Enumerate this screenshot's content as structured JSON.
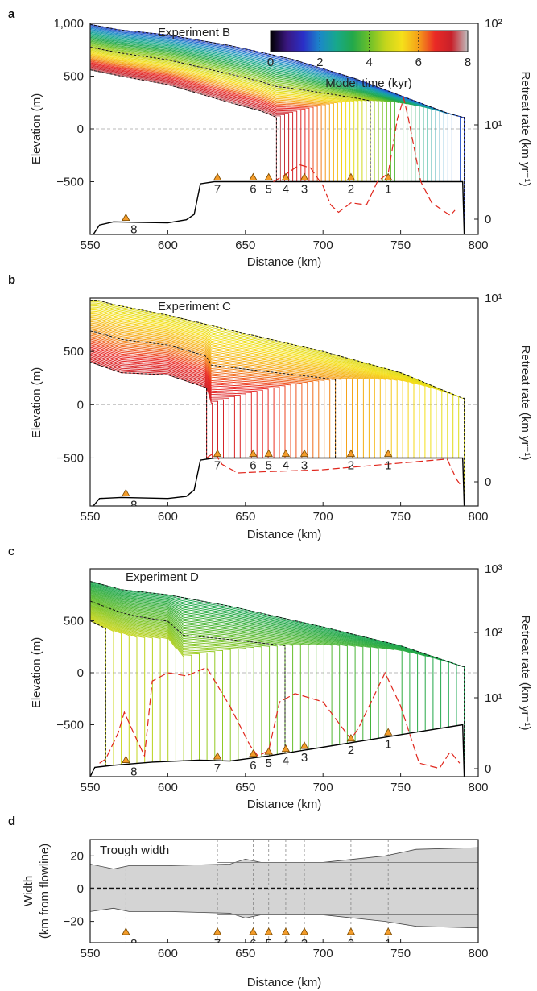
{
  "figure": {
    "panel_labels": [
      "a",
      "b",
      "c",
      "d"
    ],
    "colorbar": {
      "title": "Model time (kyr)",
      "ticks": [
        "0",
        "2",
        "4",
        "6",
        "8"
      ],
      "range": [
        0,
        8
      ]
    },
    "colors": {
      "bed": "#000000",
      "rate": "#e0261c",
      "marker_fill": "#f39c2a",
      "marker_edge": "#7a4a00",
      "sealevel": "#b8b8b8",
      "trough": "#d4d4d4",
      "colormap": [
        "#000000",
        "#3a1780",
        "#2a2fc8",
        "#1b88c9",
        "#17a88c",
        "#22a84a",
        "#6cc02a",
        "#c4d51c",
        "#f5e01a",
        "#f5a019",
        "#ea2a25",
        "#c8202a",
        "#c0c0c0"
      ]
    },
    "markers": [
      "1",
      "2",
      "3",
      "4",
      "5",
      "6",
      "7",
      "8"
    ]
  },
  "chart_data": [
    {
      "panel": "a",
      "type": "line",
      "title": "Experiment B",
      "xlabel": "Distance (km)",
      "ylabel": "Elevation (m)",
      "ylabel_right": "Retreat rate (km yr⁻¹)",
      "xlim": [
        550,
        800
      ],
      "ylim": [
        -1000,
        1000
      ],
      "xticks": [
        "550",
        "600",
        "650",
        "700",
        "750",
        "800"
      ],
      "yticks": [
        "1,000",
        "500",
        "0",
        "−500"
      ],
      "right_axis": {
        "scale": "log",
        "ticks": [
          "10²",
          "10¹",
          "0"
        ]
      },
      "ice_surface_start": [
        [
          550,
          990
        ],
        [
          568,
          940
        ],
        [
          600,
          890
        ],
        [
          640,
          790
        ],
        [
          680,
          660
        ],
        [
          720,
          480
        ],
        [
          760,
          260
        ],
        [
          780,
          150
        ],
        [
          790,
          110
        ]
      ],
      "ice_surface_end": [
        [
          550,
          560
        ],
        [
          570,
          500
        ],
        [
          600,
          420
        ],
        [
          640,
          250
        ],
        [
          660,
          170
        ],
        [
          670,
          110
        ]
      ],
      "grounding_line_km": {
        "start": 791,
        "end": 670
      },
      "bed": [
        [
          552,
          -1000
        ],
        [
          556,
          -910
        ],
        [
          565,
          -880
        ],
        [
          580,
          -885
        ],
        [
          600,
          -890
        ],
        [
          612,
          -860
        ],
        [
          617,
          -810
        ],
        [
          621,
          -520
        ],
        [
          630,
          -500
        ],
        [
          790,
          -500
        ],
        [
          791,
          -1000
        ]
      ],
      "retreat_rate": [
        [
          668,
          -500
        ],
        [
          675,
          -440
        ],
        [
          685,
          -340
        ],
        [
          692,
          -370
        ],
        [
          700,
          -540
        ],
        [
          705,
          -720
        ],
        [
          710,
          -790
        ],
        [
          718,
          -700
        ],
        [
          728,
          -720
        ],
        [
          735,
          -500
        ],
        [
          742,
          -420
        ],
        [
          748,
          100
        ],
        [
          752,
          290
        ],
        [
          755,
          100
        ],
        [
          763,
          -500
        ],
        [
          770,
          -700
        ],
        [
          778,
          -780
        ],
        [
          782,
          -820
        ],
        [
          785,
          -770
        ]
      ],
      "markers_x": [
        742,
        718,
        688,
        676,
        665,
        655,
        632,
        573
      ]
    },
    {
      "panel": "b",
      "type": "line",
      "title": "Experiment C",
      "xlabel": "Distance (km)",
      "ylabel": "Elevation (m)",
      "ylabel_right": "Retreat rate (km yr⁻¹)",
      "xlim": [
        550,
        800
      ],
      "ylim": [
        -950,
        1000
      ],
      "xticks": [
        "550",
        "600",
        "650",
        "700",
        "750",
        "800"
      ],
      "yticks": [
        "500",
        "0",
        "−500"
      ],
      "right_axis": {
        "scale": "log",
        "ticks": [
          "10¹",
          "0"
        ]
      },
      "ice_surface_start": [
        [
          555,
          980
        ],
        [
          565,
          940
        ],
        [
          600,
          840
        ],
        [
          640,
          700
        ],
        [
          700,
          500
        ],
        [
          750,
          300
        ],
        [
          790,
          60
        ]
      ],
      "ice_surface_end": [
        [
          550,
          400
        ],
        [
          570,
          300
        ],
        [
          600,
          280
        ],
        [
          625,
          160
        ],
        [
          628,
          0
        ]
      ],
      "grounding_line_km": {
        "start": 791,
        "end": 625
      },
      "bed": [
        [
          552,
          -950
        ],
        [
          556,
          -880
        ],
        [
          570,
          -870
        ],
        [
          600,
          -880
        ],
        [
          612,
          -860
        ],
        [
          617,
          -800
        ],
        [
          621,
          -520
        ],
        [
          630,
          -500
        ],
        [
          790,
          -500
        ],
        [
          791,
          -950
        ]
      ],
      "retreat_rate": [
        [
          625,
          -500
        ],
        [
          630,
          -450
        ],
        [
          635,
          -560
        ],
        [
          645,
          -640
        ],
        [
          660,
          -630
        ],
        [
          700,
          -610
        ],
        [
          740,
          -560
        ],
        [
          780,
          -510
        ],
        [
          786,
          -700
        ],
        [
          789,
          -760
        ]
      ],
      "markers_x": [
        742,
        718,
        688,
        676,
        665,
        655,
        632,
        573
      ]
    },
    {
      "panel": "c",
      "type": "line",
      "title": "Experiment D",
      "xlabel": "Distance (km)",
      "ylabel": "Elevation (m)",
      "ylabel_right": "Retreat rate (km yr⁻¹)",
      "xlim": [
        550,
        800
      ],
      "ylim": [
        -1000,
        1000
      ],
      "xticks": [
        "550",
        "600",
        "650",
        "700",
        "750",
        "800"
      ],
      "yticks": [
        "500",
        "0",
        "−500"
      ],
      "right_axis": {
        "scale": "log",
        "ticks": [
          "10³",
          "10²",
          "10¹",
          "0"
        ]
      },
      "ice_surface_start": [
        [
          550,
          880
        ],
        [
          570,
          800
        ],
        [
          600,
          750
        ],
        [
          640,
          640
        ],
        [
          700,
          440
        ],
        [
          750,
          260
        ],
        [
          790,
          60
        ]
      ],
      "ice_surface_end": [
        [
          550,
          500
        ],
        [
          565,
          390
        ],
        [
          580,
          300
        ],
        [
          600,
          240
        ],
        [
          610,
          0
        ]
      ],
      "grounding_line_km": {
        "start": 791,
        "end": 560
      },
      "bed": [
        [
          550,
          -1000
        ],
        [
          553,
          -910
        ],
        [
          565,
          -890
        ],
        [
          590,
          -860
        ],
        [
          620,
          -840
        ],
        [
          640,
          -850
        ],
        [
          665,
          -800
        ],
        [
          790,
          -500
        ],
        [
          791,
          -1000
        ]
      ],
      "retreat_rate": [
        [
          556,
          -870
        ],
        [
          560,
          -830
        ],
        [
          568,
          -580
        ],
        [
          572,
          -380
        ],
        [
          578,
          -580
        ],
        [
          585,
          -800
        ],
        [
          590,
          -80
        ],
        [
          600,
          0
        ],
        [
          612,
          -30
        ],
        [
          625,
          50
        ],
        [
          640,
          -320
        ],
        [
          653,
          -700
        ],
        [
          658,
          -800
        ],
        [
          665,
          -750
        ],
        [
          672,
          -280
        ],
        [
          682,
          -200
        ],
        [
          700,
          -280
        ],
        [
          718,
          -640
        ],
        [
          723,
          -530
        ],
        [
          740,
          0
        ],
        [
          750,
          -320
        ],
        [
          762,
          -870
        ],
        [
          775,
          -920
        ],
        [
          782,
          -760
        ],
        [
          788,
          -870
        ]
      ],
      "markers_x": [
        742,
        718,
        688,
        676,
        665,
        655,
        632,
        573
      ]
    },
    {
      "panel": "d",
      "type": "area",
      "title": "Trough width",
      "xlabel": "Distance (km)",
      "ylabel": "Width\n(km from flowline)",
      "xlim": [
        550,
        800
      ],
      "ylim": [
        -33,
        30
      ],
      "xticks": [
        "550",
        "600",
        "650",
        "700",
        "750",
        "800"
      ],
      "yticks": [
        "20",
        "0",
        "−20"
      ],
      "upper_edge": [
        [
          550,
          15
        ],
        [
          565,
          12
        ],
        [
          575,
          14
        ],
        [
          600,
          14
        ],
        [
          640,
          15
        ],
        [
          650,
          18
        ],
        [
          660,
          16
        ],
        [
          700,
          16
        ],
        [
          740,
          20
        ],
        [
          760,
          24
        ],
        [
          800,
          25
        ]
      ],
      "lower_edge": [
        [
          550,
          -14
        ],
        [
          565,
          -12
        ],
        [
          575,
          -14
        ],
        [
          600,
          -14
        ],
        [
          640,
          -15
        ],
        [
          650,
          -18
        ],
        [
          660,
          -16
        ],
        [
          700,
          -16
        ],
        [
          740,
          -20
        ],
        [
          760,
          -23
        ],
        [
          800,
          -24
        ]
      ],
      "model_width_upper": 16,
      "model_width_lower": -16,
      "centerline": 0,
      "markers_x": [
        742,
        718,
        688,
        676,
        665,
        655,
        632,
        573
      ]
    }
  ]
}
